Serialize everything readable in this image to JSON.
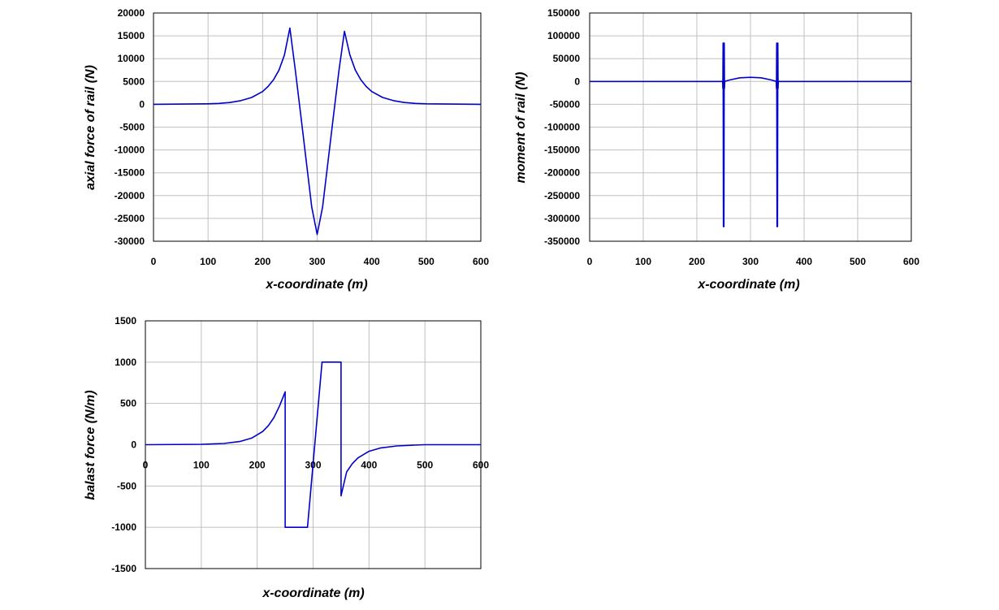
{
  "chart_data": [
    {
      "type": "line",
      "xlabel": "x-coordinate (m)",
      "ylabel": "axial force of rail (N)",
      "xlim": [
        0,
        600
      ],
      "ylim": [
        -30000,
        20000
      ],
      "xticks": [
        0,
        100,
        200,
        300,
        400,
        500,
        600
      ],
      "yticks": [
        20000,
        15000,
        10000,
        5000,
        0,
        -5000,
        -10000,
        -15000,
        -20000,
        -25000,
        -30000
      ],
      "grid": true,
      "series_color": "#0000cc",
      "x": [
        0,
        100,
        120,
        140,
        160,
        180,
        200,
        210,
        220,
        230,
        240,
        250,
        260,
        270,
        280,
        290,
        300,
        310,
        320,
        330,
        340,
        350,
        360,
        370,
        380,
        390,
        400,
        420,
        440,
        460,
        480,
        500,
        600
      ],
      "y": [
        0,
        100,
        200,
        400,
        800,
        1500,
        2800,
        3900,
        5400,
        7500,
        10800,
        16700,
        7500,
        -2500,
        -12500,
        -22500,
        -28500,
        -22500,
        -12500,
        -2500,
        7500,
        16000,
        10800,
        7500,
        5400,
        3900,
        2800,
        1500,
        800,
        400,
        200,
        100,
        0
      ]
    },
    {
      "type": "line",
      "xlabel": "x-coordinate (m)",
      "ylabel": "moment of rail (N)",
      "xlim": [
        0,
        600
      ],
      "ylim": [
        -350000,
        150000
      ],
      "xticks": [
        0,
        100,
        200,
        300,
        400,
        500,
        600
      ],
      "yticks": [
        150000,
        100000,
        50000,
        0,
        -50000,
        -100000,
        -150000,
        -200000,
        -250000,
        -300000,
        -350000
      ],
      "grid": true,
      "series_color": "#0000cc",
      "x": [
        0,
        248,
        248.5,
        249,
        249.5,
        250,
        250.5,
        251,
        251.5,
        252,
        260,
        280,
        300,
        320,
        340,
        348,
        348.5,
        349,
        349.5,
        350,
        350.5,
        351,
        351.5,
        352,
        600
      ],
      "y": [
        0,
        0,
        -15000,
        84000,
        -318000,
        84000,
        -318000,
        84000,
        -15000,
        0,
        3000,
        8000,
        9000,
        8000,
        3000,
        0,
        -15000,
        84000,
        -318000,
        84000,
        -318000,
        84000,
        -15000,
        0,
        0
      ]
    },
    {
      "type": "line",
      "xlabel": "x-coordinate (m)",
      "ylabel": "balast force (N/m)",
      "xlim": [
        0,
        600
      ],
      "ylim": [
        -1500,
        1500
      ],
      "xticks": [
        0,
        100,
        200,
        300,
        400,
        500,
        600
      ],
      "yticks": [
        1500,
        1000,
        500,
        0,
        -500,
        -1000,
        -1500
      ],
      "grid": true,
      "series_color": "#0000cc",
      "x": [
        0,
        100,
        140,
        170,
        190,
        210,
        220,
        230,
        240,
        250,
        250,
        290,
        316,
        350,
        350,
        360,
        370,
        380,
        400,
        420,
        450,
        480,
        500,
        600
      ],
      "y": [
        0,
        5,
        15,
        40,
        80,
        160,
        230,
        330,
        470,
        640,
        -1000,
        -1000,
        1000,
        1000,
        -620,
        -330,
        -230,
        -160,
        -80,
        -40,
        -15,
        -5,
        0,
        0
      ]
    }
  ]
}
